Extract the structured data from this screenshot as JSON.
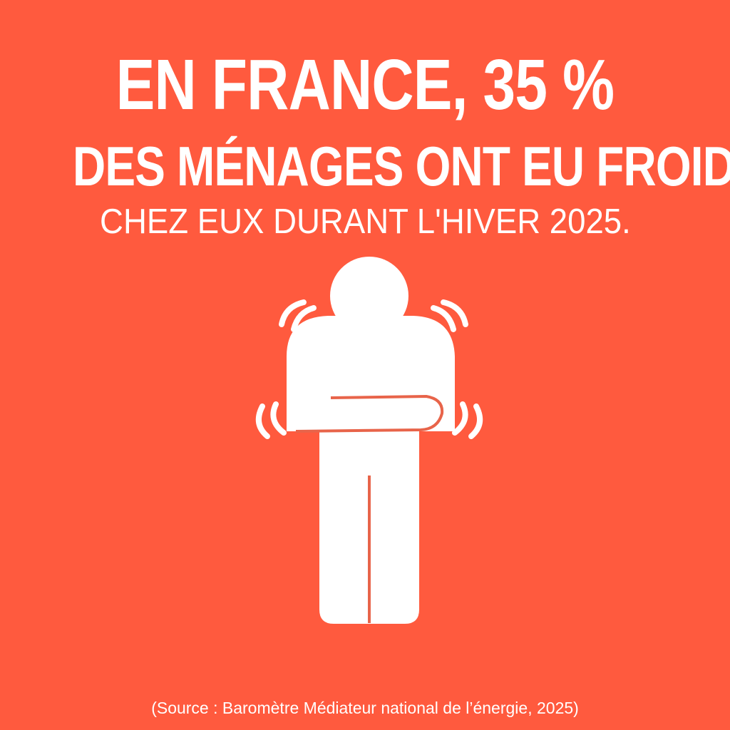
{
  "headline": {
    "line1": "EN FRANCE, 35 %",
    "line2": "DES MÉNAGES ONT EU FROID",
    "line3": "CHEZ EUX DURANT L'HIVER 2025."
  },
  "source": "(Source : Baromètre Médiateur national de l’énergie, 2025)",
  "colors": {
    "background": "#ff5a3e",
    "foreground": "#ffffff",
    "accent_line": "#e8644a"
  },
  "illustration": {
    "icon": "shivering-person-icon"
  }
}
